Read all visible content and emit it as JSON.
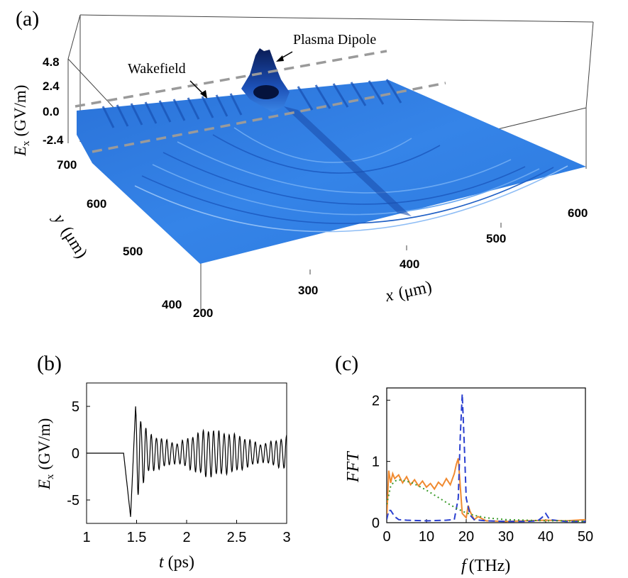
{
  "chart_data": [
    {
      "panel": "(a)",
      "type": "surface3d",
      "annotations": [
        "Plasma Dipole",
        "Wakefield"
      ],
      "zlabel": "E_x (GV/m)",
      "zlabel_main": "E",
      "zlabel_sub": "x",
      "zlabel_unit": "(GV/m)",
      "zticks": [
        "4.8",
        "2.4",
        "0.0",
        "-2.4"
      ],
      "xlabel_main": "x",
      "xlabel_unit": "(μm)",
      "ylabel_main": "y",
      "ylabel_unit": "(μm)",
      "xticks": [
        "200",
        "300",
        "400",
        "500",
        "600"
      ],
      "yticks": [
        "700",
        "600",
        "500",
        "400"
      ],
      "colors": {
        "surface": "#2f7de1",
        "surface_dark": "#0b2a78",
        "guide": "#9a9a9a"
      }
    },
    {
      "panel": "(b)",
      "type": "line",
      "xlabel_main": "t",
      "xlabel_unit": "(ps)",
      "ylabel": "E_x (GV/m)",
      "ylabel_main": "E",
      "ylabel_sub": "x",
      "ylabel_unit": "(GV/m)",
      "xlim": [
        1,
        3
      ],
      "ylim": [
        -7.5,
        7.5
      ],
      "xticks": [
        1,
        1.5,
        2,
        2.5,
        3
      ],
      "xtick_labels": [
        "1",
        "1.5",
        "2",
        "2.5",
        "3"
      ],
      "yticks": [
        5,
        0,
        -5
      ],
      "ytick_labels": [
        "5",
        "0",
        "-5"
      ],
      "signal": {
        "baseline_until": 1.37,
        "dip": {
          "t": 1.44,
          "value": -6.8
        },
        "peak": {
          "t": 1.49,
          "value": 5.0
        },
        "osc_period_ps": 0.052,
        "envelope": [
          [
            1.5,
            4.5
          ],
          [
            1.62,
            2.0
          ],
          [
            1.9,
            1.0
          ],
          [
            2.2,
            2.5
          ],
          [
            2.5,
            1.9
          ],
          [
            2.75,
            0.9
          ],
          [
            3.0,
            1.7
          ]
        ]
      },
      "colors": {
        "line": "#000000"
      }
    },
    {
      "panel": "(c)",
      "type": "line",
      "xlabel_main": "f",
      "xlabel_unit": "(THz)",
      "ylabel": "FFT",
      "xlim": [
        0,
        50
      ],
      "ylim": [
        0,
        2.2
      ],
      "xticks": [
        0,
        10,
        20,
        30,
        40,
        50
      ],
      "xtick_labels": [
        "0",
        "10",
        "20",
        "30",
        "40",
        "50"
      ],
      "yticks": [
        0,
        1,
        2
      ],
      "ytick_labels": [
        "0",
        "1",
        "2"
      ],
      "series": [
        {
          "name": "orange",
          "style": "solid",
          "color": "#f08a30",
          "x": [
            0,
            0.5,
            1,
            1.5,
            2,
            3,
            4,
            5,
            6,
            7,
            8,
            9,
            10,
            11,
            12,
            13,
            14,
            15,
            16,
            17,
            17.5,
            18,
            18.5,
            19,
            20,
            20.5,
            21,
            22,
            23,
            25,
            30,
            35,
            40,
            45,
            50
          ],
          "y": [
            0.05,
            0.85,
            0.65,
            0.8,
            0.72,
            0.78,
            0.65,
            0.75,
            0.62,
            0.7,
            0.6,
            0.68,
            0.58,
            0.64,
            0.55,
            0.66,
            0.6,
            0.72,
            0.62,
            0.8,
            0.95,
            1.05,
            0.6,
            0.15,
            0.08,
            0.28,
            0.18,
            0.05,
            0.1,
            0.03,
            0.02,
            0.03,
            0.04,
            0.03,
            0.05
          ]
        },
        {
          "name": "blue",
          "style": "dashed",
          "color": "#2a3fd0",
          "x": [
            0,
            0.5,
            1,
            2,
            3,
            5,
            10,
            15,
            17,
            18,
            18.5,
            19,
            19.5,
            20,
            21,
            22,
            25,
            30,
            35,
            38,
            39,
            40,
            41,
            45,
            50
          ],
          "y": [
            0.05,
            0.2,
            0.2,
            0.1,
            0.05,
            0.04,
            0.03,
            0.04,
            0.05,
            0.4,
            1.4,
            2.1,
            1.3,
            0.4,
            0.12,
            0.05,
            0.03,
            0.02,
            0.02,
            0.03,
            0.08,
            0.15,
            0.05,
            0.02,
            0.02
          ]
        },
        {
          "name": "green",
          "style": "dotted",
          "color": "#3a9a2a",
          "x": [
            0,
            1,
            2,
            3,
            4,
            6,
            8,
            10,
            12,
            14,
            16,
            18,
            20,
            22,
            25,
            30,
            35,
            40,
            45,
            50
          ],
          "y": [
            0.3,
            0.6,
            0.68,
            0.7,
            0.69,
            0.66,
            0.6,
            0.53,
            0.45,
            0.37,
            0.29,
            0.22,
            0.16,
            0.12,
            0.08,
            0.05,
            0.04,
            0.03,
            0.03,
            0.02
          ]
        }
      ]
    }
  ]
}
